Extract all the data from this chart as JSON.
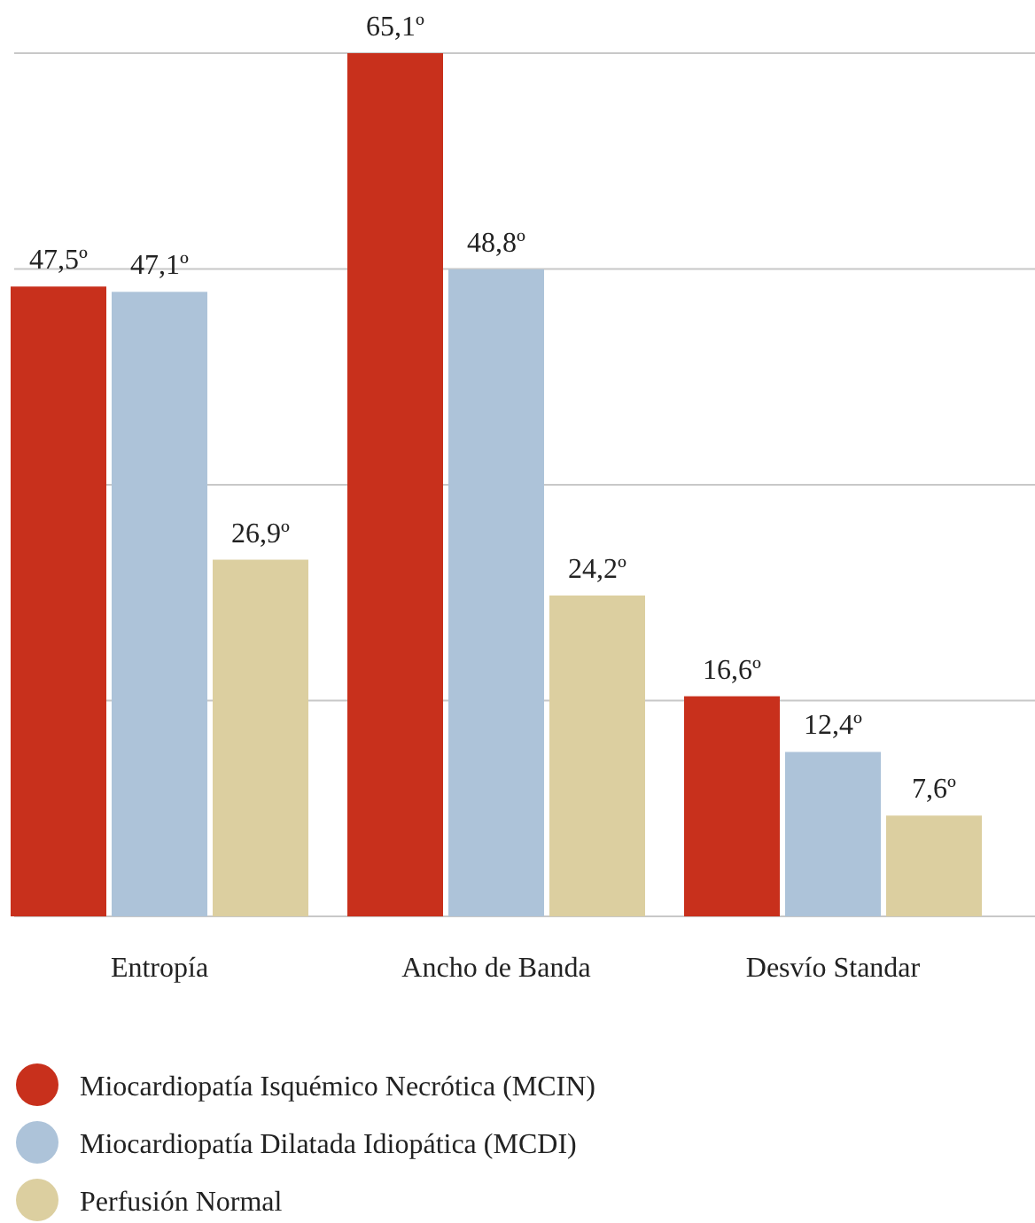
{
  "chart_data": {
    "type": "bar",
    "categories": [
      "Entropía",
      "Ancho de Banda",
      "Desvío Standar"
    ],
    "series": [
      {
        "name": "Miocardiopatía Isquémico Necrótica (MCIN)",
        "color": "#c8301c",
        "values": [
          47.5,
          65.1,
          16.6
        ],
        "value_labels": [
          "47,5º",
          "65,1º",
          "16,6º"
        ]
      },
      {
        "name": "Miocardiopatía Dilatada Idiopática (MCDI)",
        "color": "#adc3d9",
        "values": [
          47.1,
          48.8,
          12.4
        ],
        "value_labels": [
          "47,1º",
          "48,8º",
          "12,4º"
        ]
      },
      {
        "name": "Perfusión Normal",
        "color": "#dccfa0",
        "values": [
          26.9,
          24.2,
          7.6
        ],
        "value_labels": [
          "26,9º",
          "24,2º",
          "7,6º"
        ]
      }
    ],
    "ylim": [
      0,
      65.1
    ],
    "yticks": [
      {
        "value": 0,
        "label": null
      },
      {
        "value": 16.275,
        "label": null
      },
      {
        "value": 32.55,
        "label": null
      },
      {
        "value": 48.825,
        "label": null
      },
      {
        "value": 65.1,
        "label": null
      }
    ],
    "tick_labels": "x",
    "grid": "y",
    "legend": "bottom"
  }
}
